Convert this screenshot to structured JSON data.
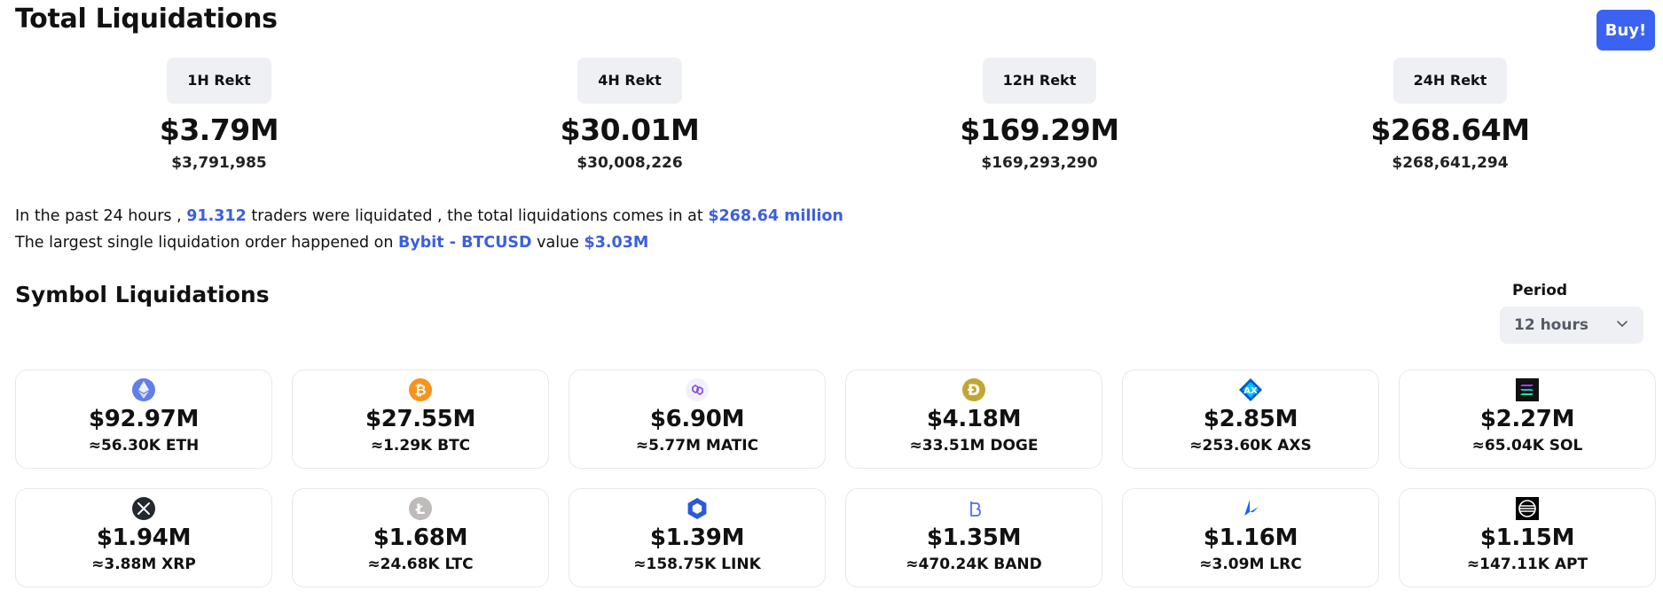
{
  "header": {
    "title": "Total Liquidations",
    "buy_label": "Buy!",
    "buy_color": "#3b63f3"
  },
  "rekt": [
    {
      "label": "1H Rekt",
      "big": "$3.79M",
      "exact": "$3,791,985"
    },
    {
      "label": "4H Rekt",
      "big": "$30.01M",
      "exact": "$30,008,226"
    },
    {
      "label": "12H Rekt",
      "big": "$169.29M",
      "exact": "$169,293,290"
    },
    {
      "label": "24H Rekt",
      "big": "$268.64M",
      "exact": "$268,641,294"
    }
  ],
  "summary": {
    "line1_a": "In the past 24 hours ,",
    "traders": "91.312",
    "line1_b": "traders were liquidated , the total liquidations comes in at",
    "total": "$268.64 million",
    "line2_a": "The largest single liquidation order happened on",
    "exchange": "Bybit - BTCUSD",
    "line2_b": "value",
    "largest": "$3.03M",
    "highlight_color": "#3b5fe0"
  },
  "symbols": {
    "title": "Symbol Liquidations",
    "period_label": "Period",
    "period_value": "12 hours",
    "cards": [
      {
        "icon": "eth-icon",
        "value": "$92.97M",
        "amount": "≈56.30K ETH"
      },
      {
        "icon": "btc-icon",
        "value": "$27.55M",
        "amount": "≈1.29K BTC"
      },
      {
        "icon": "matic-icon",
        "value": "$6.90M",
        "amount": "≈5.77M MATIC"
      },
      {
        "icon": "doge-icon",
        "value": "$4.18M",
        "amount": "≈33.51M DOGE"
      },
      {
        "icon": "axs-icon",
        "value": "$2.85M",
        "amount": "≈253.60K AXS"
      },
      {
        "icon": "sol-icon",
        "value": "$2.27M",
        "amount": "≈65.04K SOL"
      },
      {
        "icon": "xrp-icon",
        "value": "$1.94M",
        "amount": "≈3.88M XRP"
      },
      {
        "icon": "ltc-icon",
        "value": "$1.68M",
        "amount": "≈24.68K LTC"
      },
      {
        "icon": "link-icon",
        "value": "$1.39M",
        "amount": "≈158.75K LINK"
      },
      {
        "icon": "band-icon",
        "value": "$1.35M",
        "amount": "≈470.24K BAND"
      },
      {
        "icon": "lrc-icon",
        "value": "$1.16M",
        "amount": "≈3.09M LRC"
      },
      {
        "icon": "apt-icon",
        "value": "$1.15M",
        "amount": "≈147.11K APT"
      }
    ]
  }
}
